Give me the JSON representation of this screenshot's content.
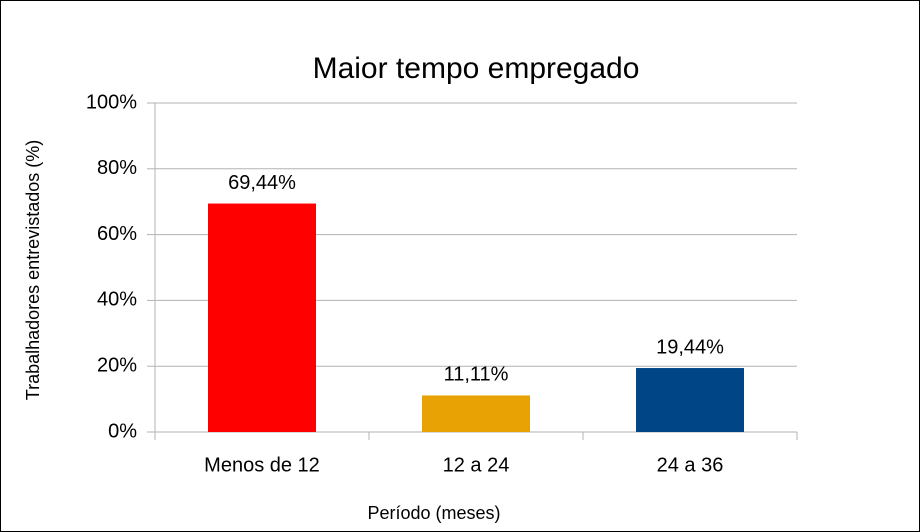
{
  "chart_data": {
    "type": "bar",
    "title": "Maior tempo empregado",
    "x_label": "Período (meses)",
    "y_label": "Trabalhadores entrevistados (%)",
    "categories": [
      "Menos de 12",
      "12 a 24",
      "24 a 36"
    ],
    "values": [
      69.44,
      11.11,
      19.44
    ],
    "value_labels": [
      "69,44%",
      "11,11%",
      "19,44%"
    ],
    "colors": [
      "#ff0000",
      "#e9a204",
      "#004586"
    ],
    "ylim": [
      0,
      100
    ],
    "yticks": [
      {
        "value": 0,
        "label": "0%"
      },
      {
        "value": 20,
        "label": "20%"
      },
      {
        "value": 40,
        "label": "40%"
      },
      {
        "value": 60,
        "label": "60%"
      },
      {
        "value": 80,
        "label": "80%"
      },
      {
        "value": 100,
        "label": "100%"
      }
    ],
    "grid": true
  }
}
